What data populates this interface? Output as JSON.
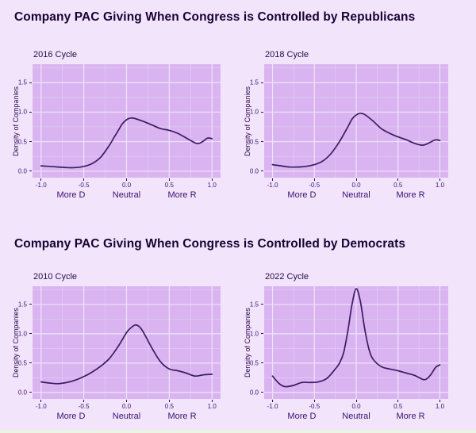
{
  "sections": [
    {
      "title": "Company PAC Giving When Congress is Controlled by Republicans"
    },
    {
      "title": "Company PAC Giving When Congress is Controlled by Democrats"
    }
  ],
  "axes_common": {
    "ylabel": "Density of Companies",
    "y_tick_labels": [
      "0.0",
      "0.5",
      "1.0",
      "1.5"
    ],
    "y_ticks": [
      0,
      0.5,
      1,
      1.5
    ],
    "x_tick_labels": [
      "-1.0",
      "-0.5",
      "0.0",
      "0.5",
      "1.0"
    ],
    "x_ticks": [
      -1,
      -0.5,
      0,
      0.5,
      1
    ],
    "x_annotations": [
      {
        "label": "More D",
        "x": -0.65
      },
      {
        "label": "Neutral",
        "x": 0
      },
      {
        "label": "More R",
        "x": 0.65
      }
    ],
    "xlim": [
      -1.1,
      1.1
    ],
    "ylim": [
      -0.11,
      1.81
    ],
    "x_minor": [
      -0.75,
      -0.25,
      0.25,
      0.75
    ],
    "y_minor": [
      0.25,
      0.75,
      1.25,
      1.75
    ],
    "grid": "on"
  },
  "colors": {
    "background": "#f2e5fb",
    "panel": "#d9b4f0",
    "grid_major": "#f0e3fc",
    "grid_minor": "#e3ccf6",
    "curve": "#3c1b63",
    "title_text": "#190233",
    "axis_text": "#3d1472"
  },
  "chart_data": [
    {
      "type": "line",
      "title": "2016 Cycle",
      "section": "Company PAC Giving When Congress is Controlled by Republicans",
      "series": [
        {
          "name": "density",
          "x": [
            -1,
            -0.9,
            -0.8,
            -0.7,
            -0.6,
            -0.5,
            -0.4,
            -0.3,
            -0.2,
            -0.15,
            -0.1,
            -0.05,
            0,
            0.05,
            0.1,
            0.2,
            0.3,
            0.4,
            0.5,
            0.6,
            0.7,
            0.8,
            0.85,
            0.9,
            0.95,
            1
          ],
          "y": [
            0.09,
            0.08,
            0.07,
            0.06,
            0.06,
            0.08,
            0.13,
            0.24,
            0.44,
            0.56,
            0.68,
            0.8,
            0.87,
            0.9,
            0.89,
            0.84,
            0.78,
            0.72,
            0.69,
            0.64,
            0.56,
            0.48,
            0.47,
            0.51,
            0.56,
            0.55
          ]
        }
      ]
    },
    {
      "type": "line",
      "title": "2018 Cycle",
      "section": "Company PAC Giving When Congress is Controlled by Republicans",
      "series": [
        {
          "name": "density",
          "x": [
            -1,
            -0.9,
            -0.8,
            -0.7,
            -0.6,
            -0.5,
            -0.4,
            -0.3,
            -0.2,
            -0.1,
            -0.05,
            0,
            0.05,
            0.1,
            0.2,
            0.3,
            0.4,
            0.5,
            0.6,
            0.7,
            0.8,
            0.9,
            0.95,
            1
          ],
          "y": [
            0.11,
            0.09,
            0.07,
            0.07,
            0.08,
            0.11,
            0.17,
            0.3,
            0.5,
            0.75,
            0.88,
            0.95,
            0.98,
            0.96,
            0.85,
            0.72,
            0.64,
            0.58,
            0.53,
            0.47,
            0.44,
            0.5,
            0.53,
            0.52
          ]
        }
      ]
    },
    {
      "type": "line",
      "title": "2010 Cycle",
      "section": "Company PAC Giving When Congress is Controlled by Democrats",
      "series": [
        {
          "name": "density",
          "x": [
            -1,
            -0.9,
            -0.8,
            -0.7,
            -0.6,
            -0.5,
            -0.4,
            -0.3,
            -0.2,
            -0.1,
            0,
            0.05,
            0.1,
            0.15,
            0.2,
            0.3,
            0.4,
            0.5,
            0.6,
            0.7,
            0.8,
            0.9,
            1
          ],
          "y": [
            0.18,
            0.16,
            0.15,
            0.17,
            0.21,
            0.27,
            0.35,
            0.45,
            0.58,
            0.78,
            1.02,
            1.1,
            1.15,
            1.12,
            1.02,
            0.75,
            0.52,
            0.4,
            0.37,
            0.33,
            0.28,
            0.3,
            0.31
          ]
        }
      ]
    },
    {
      "type": "line",
      "title": "2022 Cycle",
      "section": "Company PAC Giving When Congress is Controlled by Democrats",
      "series": [
        {
          "name": "density",
          "x": [
            -1,
            -0.92,
            -0.85,
            -0.75,
            -0.65,
            -0.55,
            -0.45,
            -0.35,
            -0.25,
            -0.2,
            -0.15,
            -0.1,
            -0.05,
            0,
            0.05,
            0.1,
            0.15,
            0.2,
            0.3,
            0.4,
            0.5,
            0.6,
            0.7,
            0.8,
            0.85,
            0.9,
            0.95,
            1
          ],
          "y": [
            0.28,
            0.15,
            0.1,
            0.12,
            0.17,
            0.17,
            0.18,
            0.24,
            0.4,
            0.5,
            0.68,
            1.05,
            1.5,
            1.77,
            1.55,
            1.1,
            0.75,
            0.57,
            0.44,
            0.4,
            0.37,
            0.33,
            0.29,
            0.22,
            0.24,
            0.32,
            0.43,
            0.47
          ]
        }
      ]
    }
  ]
}
